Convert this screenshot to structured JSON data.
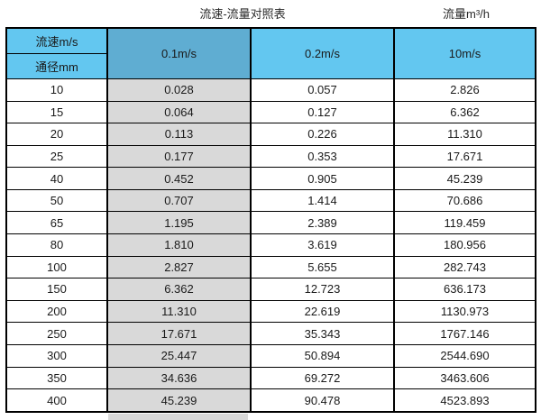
{
  "page": {
    "title": "流速-流量对照表",
    "unit_label": "流量m³/h"
  },
  "colors": {
    "header_blue": "#63c7f0",
    "header_blue_dark": "#5fadd2",
    "highlight_gray": "#d9d9d9",
    "border_black": "#000000",
    "text": "#1a1a1a",
    "background": "#ffffff"
  },
  "chart_data": {
    "type": "table",
    "title": "流速-流量对照表",
    "unit_label": "流量m³/h",
    "corner_top": "流速m/s",
    "corner_bottom": "通径mm",
    "columns": [
      "0.1m/s",
      "0.2m/s",
      "10m/s"
    ],
    "highlighted_column": "0.1m/s",
    "rows": [
      {
        "diameter": "10",
        "values": [
          "0.028",
          "0.057",
          "2.826"
        ]
      },
      {
        "diameter": "15",
        "values": [
          "0.064",
          "0.127",
          "6.362"
        ]
      },
      {
        "diameter": "20",
        "values": [
          "0.113",
          "0.226",
          "11.310"
        ]
      },
      {
        "diameter": "25",
        "values": [
          "0.177",
          "0.353",
          "17.671"
        ]
      },
      {
        "diameter": "40",
        "values": [
          "0.452",
          "0.905",
          "45.239"
        ]
      },
      {
        "diameter": "50",
        "values": [
          "0.707",
          "1.414",
          "70.686"
        ]
      },
      {
        "diameter": "65",
        "values": [
          "1.195",
          "2.389",
          "119.459"
        ]
      },
      {
        "diameter": "80",
        "values": [
          "1.810",
          "3.619",
          "180.956"
        ]
      },
      {
        "diameter": "100",
        "values": [
          "2.827",
          "5.655",
          "282.743"
        ]
      },
      {
        "diameter": "150",
        "values": [
          "6.362",
          "12.723",
          "636.173"
        ]
      },
      {
        "diameter": "200",
        "values": [
          "11.310",
          "22.619",
          "1130.973"
        ]
      },
      {
        "diameter": "250",
        "values": [
          "17.671",
          "35.343",
          "1767.146"
        ]
      },
      {
        "diameter": "300",
        "values": [
          "25.447",
          "50.894",
          "2544.690"
        ]
      },
      {
        "diameter": "350",
        "values": [
          "34.636",
          "69.272",
          "3463.606"
        ]
      },
      {
        "diameter": "400",
        "values": [
          "45.239",
          "90.478",
          "4523.893"
        ]
      }
    ]
  }
}
